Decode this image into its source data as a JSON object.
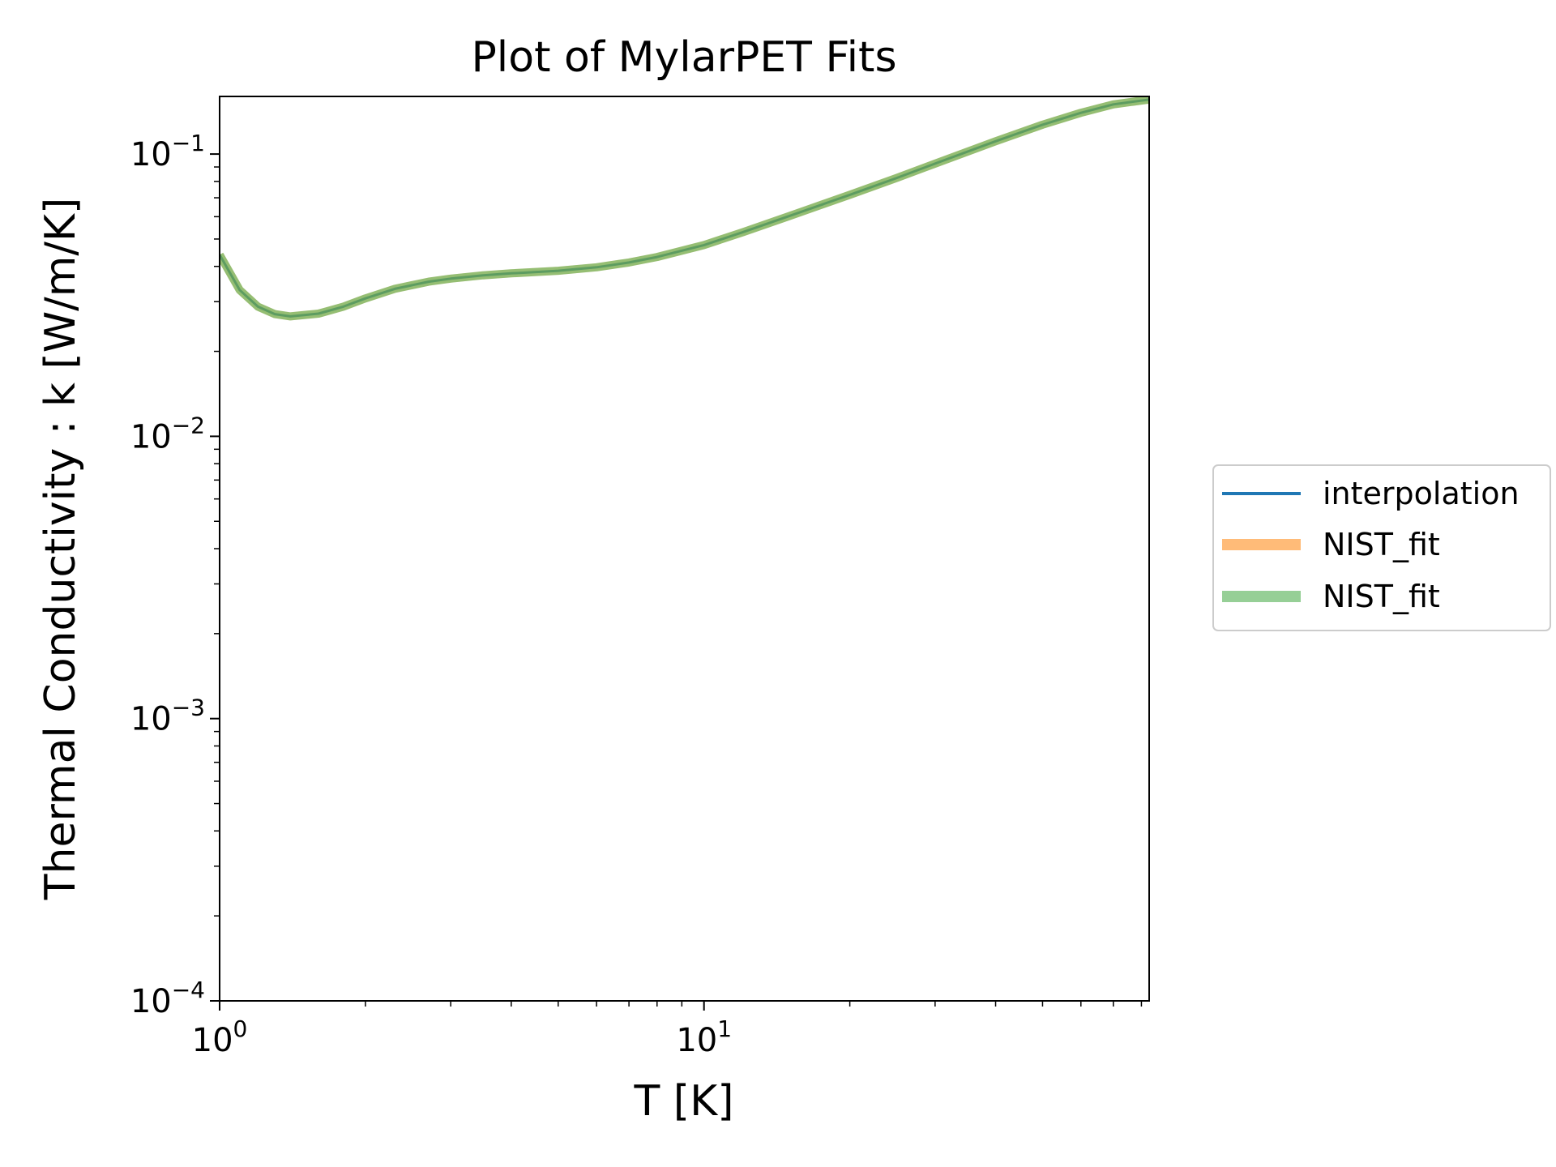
{
  "chart_data": {
    "type": "line",
    "title": "Plot of MylarPET Fits",
    "xlabel": "T [K]",
    "ylabel": "Thermal Conductivity : k [W/m/K]",
    "xscale": "log",
    "yscale": "log",
    "xlim": [
      1,
      83
    ],
    "ylim": [
      0.0001,
      0.16
    ],
    "x_ticks": [
      {
        "value": 1,
        "base": "10",
        "exp": "0"
      },
      {
        "value": 10,
        "base": "10",
        "exp": "1"
      }
    ],
    "y_ticks": [
      {
        "value": 0.0001,
        "base": "10",
        "exp": "−4"
      },
      {
        "value": 0.001,
        "base": "10",
        "exp": "−3"
      },
      {
        "value": 0.01,
        "base": "10",
        "exp": "−2"
      },
      {
        "value": 0.1,
        "base": "10",
        "exp": "−1"
      }
    ],
    "grid": false,
    "legend_position": "outside right",
    "x": [
      1.0,
      1.1,
      1.2,
      1.3,
      1.4,
      1.6,
      1.8,
      2.0,
      2.3,
      2.7,
      3.0,
      3.5,
      4.0,
      5.0,
      6.0,
      7.0,
      8.0,
      10.0,
      12.0,
      15.0,
      20.0,
      25.0,
      30.0,
      40.0,
      50.0,
      60.0,
      70.0,
      83.0
    ],
    "series": [
      {
        "name": "interpolation",
        "color": "#1f77b4",
        "width": 3,
        "opacity": 1.0,
        "values": [
          0.044,
          0.033,
          0.0288,
          0.0271,
          0.0266,
          0.0272,
          0.0288,
          0.0308,
          0.0333,
          0.0353,
          0.0362,
          0.0372,
          0.0378,
          0.0386,
          0.0397,
          0.0413,
          0.0432,
          0.0476,
          0.0528,
          0.0603,
          0.0717,
          0.0823,
          0.0925,
          0.111,
          0.127,
          0.14,
          0.15,
          0.156
        ]
      },
      {
        "name": "NIST_fit",
        "color": "#ffbb78",
        "width": 10,
        "opacity": 0.5,
        "values": [
          0.044,
          0.033,
          0.0288,
          0.0271,
          0.0266,
          0.0272,
          0.0288,
          0.0308,
          0.0333,
          0.0353,
          0.0362,
          0.0372,
          0.0378,
          0.0386,
          0.0397,
          0.0413,
          0.0432,
          0.0476,
          0.0528,
          0.0603,
          0.0717,
          0.0823,
          0.0925,
          0.111,
          0.127,
          0.14,
          0.15,
          0.156
        ]
      },
      {
        "name": "NIST_fit",
        "color": "#2ca02c",
        "width": 10,
        "opacity": 0.5,
        "values": [
          0.044,
          0.033,
          0.0288,
          0.0271,
          0.0266,
          0.0272,
          0.0288,
          0.0308,
          0.0333,
          0.0353,
          0.0362,
          0.0372,
          0.0378,
          0.0386,
          0.0397,
          0.0413,
          0.0432,
          0.0476,
          0.0528,
          0.0603,
          0.0717,
          0.0823,
          0.0925,
          0.111,
          0.127,
          0.14,
          0.15,
          0.156
        ]
      }
    ]
  }
}
